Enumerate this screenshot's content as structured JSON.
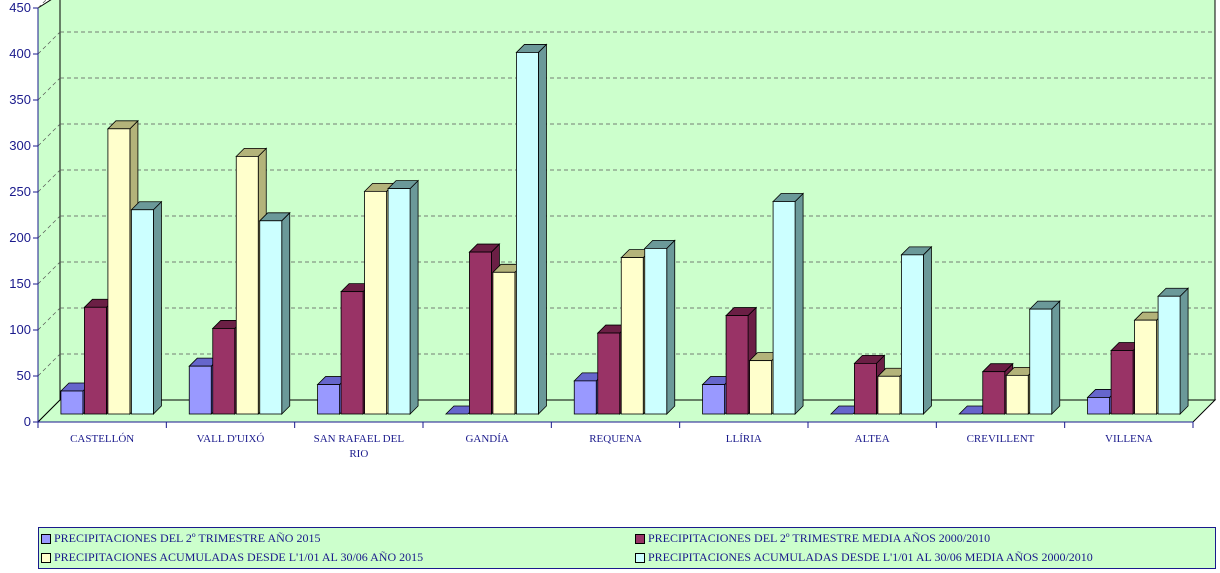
{
  "chart_data": {
    "type": "bar",
    "categories": [
      "CASTELLÓN",
      "VALL D'UIXÓ",
      "SAN RAFAEL DEL RIO",
      "GANDÍA",
      "REQUENA",
      "LLÍRIA",
      "ALTEA",
      "CREVILLENT",
      "VILLENA"
    ],
    "series": [
      {
        "name": "PRECIPITACIONES DEL 2º TRIMESTRE AÑO 2015",
        "values": [
          25,
          52,
          32,
          0,
          36,
          32,
          0,
          0,
          18
        ],
        "color": "#9999ff",
        "dark": "#6666cc"
      },
      {
        "name": "PRECIPITACIONES DEL 2º TRIMESTRE MEDIA AÑOS 2000/2010",
        "values": [
          116,
          93,
          133,
          176,
          88,
          107,
          55,
          46,
          69
        ],
        "color": "#993366",
        "dark": "#6b1f45"
      },
      {
        "name": "PRECIPITACIONES ACUMULADAS DESDE L'1/01 AL 30/06 AÑO 2015",
        "values": [
          310,
          280,
          242,
          154,
          170,
          58,
          41,
          42,
          102
        ],
        "color": "#ffffcc",
        "dark": "#b3b37a"
      },
      {
        "name": "PRECIPITACIONES ACUMULADAS DESDE L'1/01 AL 30/06 MEDIA AÑOS 2000/2010",
        "values": [
          222,
          210,
          245,
          393,
          180,
          231,
          173,
          114,
          128
        ],
        "color": "#ccffff",
        "dark": "#6b9999"
      }
    ],
    "y_ticks": [
      0,
      50,
      100,
      150,
      200,
      250,
      300,
      350,
      400,
      450
    ],
    "ylim": [
      0,
      450
    ],
    "plot_background": "#ccffcc",
    "grid": true,
    "legend_position": "bottom"
  }
}
